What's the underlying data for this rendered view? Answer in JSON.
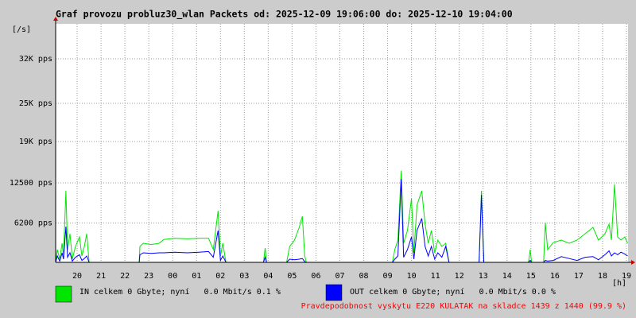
{
  "chart_data": {
    "type": "line",
    "title": "Graf provozu probluz30_wlan Packets od: 2025-12-09 19:06:00 do: 2025-12-10 19:04:00",
    "y_unit": "[/s]",
    "x_label": "[h]",
    "note": "Pravdepodobnost vyskytu E220 KULATAK na skladce 1439 z 1440 (99.9 %)",
    "xlim": [
      19.1,
      43.0667
    ],
    "xticks": [
      20,
      21,
      22,
      23,
      {
        "value": 24,
        "label": "00"
      },
      {
        "value": 25,
        "label": "01"
      },
      {
        "value": 26,
        "label": "02"
      },
      {
        "value": 27,
        "label": "03"
      },
      {
        "value": 28,
        "label": "04"
      },
      {
        "value": 29,
        "label": "05"
      },
      {
        "value": 30,
        "label": "06"
      },
      {
        "value": 31,
        "label": "07"
      },
      {
        "value": 32,
        "label": "08"
      },
      {
        "value": 33,
        "label": "09"
      },
      {
        "value": 34,
        "label": "10"
      },
      {
        "value": 35,
        "label": "11"
      },
      {
        "value": 36,
        "label": "12"
      },
      {
        "value": 37,
        "label": "13"
      },
      {
        "value": 38,
        "label": "14"
      },
      {
        "value": 39,
        "label": "15"
      },
      {
        "value": 40,
        "label": "16"
      },
      {
        "value": 41,
        "label": "17"
      },
      {
        "value": 42,
        "label": "18"
      },
      {
        "value": 43,
        "label": "19"
      }
    ],
    "ylim": [
      0,
      37500
    ],
    "yticks": [
      {
        "value": 6200,
        "label": "6200 pps"
      },
      {
        "value": 12500,
        "label": "12500 pps"
      },
      {
        "value": 19000,
        "label": "19K pps"
      },
      {
        "value": 25000,
        "label": "25K pps"
      },
      {
        "value": 32000,
        "label": "32K pps"
      }
    ],
    "grid": true,
    "x": [
      19.1,
      19.17,
      19.27,
      19.37,
      19.43,
      19.53,
      19.6,
      19.7,
      19.8,
      19.93,
      20.1,
      20.2,
      20.3,
      20.4,
      20.5,
      22.6,
      22.63,
      22.77,
      23.1,
      23.43,
      23.63,
      24.1,
      24.6,
      25.1,
      25.5,
      25.7,
      25.9,
      26.0,
      26.1,
      26.23,
      27.8,
      27.87,
      27.93,
      28.77,
      28.9,
      29.1,
      29.3,
      29.43,
      29.53,
      29.6,
      33.2,
      33.3,
      33.43,
      33.57,
      33.67,
      33.83,
      34.0,
      34.1,
      34.23,
      34.43,
      34.57,
      34.7,
      34.83,
      34.97,
      35.1,
      35.27,
      35.43,
      35.57,
      36.83,
      36.93,
      37.03,
      38.9,
      38.97,
      39.03,
      39.53,
      39.6,
      39.7,
      39.93,
      40.27,
      40.6,
      40.93,
      41.27,
      41.6,
      41.83,
      42.1,
      42.27,
      42.37,
      42.5,
      42.63,
      42.77,
      42.93,
      43.05
    ],
    "series": [
      {
        "name": "IN celkem 0 Gbyte; nyní   0.0 Mbit/s 0.1 %",
        "color": "#00e600",
        "values": [
          0,
          2000,
          500,
          3000,
          1000,
          11250,
          2000,
          4500,
          500,
          2500,
          4000,
          1000,
          2500,
          4500,
          0,
          0,
          2500,
          3000,
          2800,
          3000,
          3600,
          3800,
          3700,
          3800,
          3800,
          2000,
          8100,
          1000,
          3000,
          0,
          0,
          2250,
          0,
          0,
          2500,
          3500,
          5500,
          7250,
          1000,
          0,
          0,
          2000,
          3500,
          14400,
          3000,
          5000,
          10000,
          1500,
          9000,
          11250,
          6000,
          3000,
          5000,
          1500,
          3500,
          2500,
          3000,
          0,
          0,
          11250,
          0,
          0,
          2000,
          0,
          0,
          6250,
          2000,
          3100,
          3500,
          3000,
          3500,
          4500,
          5500,
          3500,
          4500,
          6000,
          3500,
          12250,
          4000,
          3500,
          4000,
          3000
        ]
      },
      {
        "name": "OUT celkem 0 Gbyte; nyní   0.0 Mbit/s 0.0 %",
        "color": "#0000ff",
        "values": [
          0,
          1000,
          200,
          1500,
          500,
          5600,
          800,
          1500,
          200,
          800,
          1200,
          300,
          600,
          1000,
          0,
          0,
          1200,
          1500,
          1400,
          1500,
          1500,
          1600,
          1500,
          1600,
          1700,
          800,
          5000,
          300,
          1000,
          0,
          0,
          800,
          0,
          0,
          500,
          400,
          500,
          600,
          100,
          0,
          0,
          500,
          1000,
          13100,
          800,
          2000,
          4000,
          500,
          5000,
          6900,
          2500,
          1000,
          2500,
          500,
          1500,
          800,
          2500,
          0,
          0,
          10600,
          0,
          0,
          300,
          0,
          0,
          300,
          200,
          300,
          900,
          600,
          300,
          800,
          900,
          400,
          1200,
          1800,
          1000,
          1500,
          1200,
          1600,
          1300,
          1000
        ]
      }
    ]
  }
}
